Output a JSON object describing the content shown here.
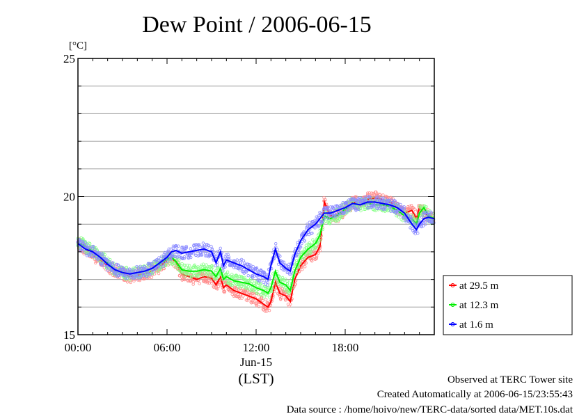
{
  "chart_data": {
    "type": "line",
    "title": "Dew Point / 2006-06-15",
    "ylabel": "[°C]",
    "xlabel": "(LST)",
    "x_date_label": "Jun-15",
    "ylim": [
      15,
      25
    ],
    "xlim": [
      0,
      24
    ],
    "y_ticks": [
      {
        "v": 15,
        "label": "15"
      },
      {
        "v": 20,
        "label": "20"
      },
      {
        "v": 25,
        "label": "25"
      }
    ],
    "y_gridlines": [
      16,
      17,
      18,
      19,
      20,
      21,
      22,
      23,
      24
    ],
    "x_ticks": [
      {
        "v": 0,
        "label": "00:00"
      },
      {
        "v": 6,
        "label": "06:00"
      },
      {
        "v": 12,
        "label": "12:00"
      },
      {
        "v": 18,
        "label": "18:00"
      }
    ],
    "x_minor_step": 1,
    "legend_position": "right",
    "series": [
      {
        "name": "at 29.5 m",
        "color": "#ff0000",
        "band_color": "#ff8a8a",
        "points": [
          [
            0,
            18.3
          ],
          [
            0.5,
            18.1
          ],
          [
            1,
            17.9
          ],
          [
            1.5,
            17.7
          ],
          [
            2,
            17.5
          ],
          [
            2.5,
            17.3
          ],
          [
            3,
            17.2
          ],
          [
            3.5,
            17.1
          ],
          [
            4,
            17.15
          ],
          [
            4.5,
            17.2
          ],
          [
            5,
            17.3
          ],
          [
            5.5,
            17.45
          ],
          [
            6,
            17.7
          ],
          [
            6.3,
            17.8
          ],
          [
            6.6,
            17.6
          ],
          [
            7,
            17.2
          ],
          [
            7.5,
            17.1
          ],
          [
            8,
            17.0
          ],
          [
            8.5,
            17.1
          ],
          [
            9,
            17.05
          ],
          [
            9.3,
            16.8
          ],
          [
            9.6,
            17.1
          ],
          [
            9.8,
            16.7
          ],
          [
            10,
            16.8
          ],
          [
            10.5,
            16.6
          ],
          [
            11,
            16.5
          ],
          [
            11.5,
            16.4
          ],
          [
            12,
            16.3
          ],
          [
            12.5,
            16.1
          ],
          [
            12.8,
            16.0
          ],
          [
            13,
            16.2
          ],
          [
            13.3,
            16.9
          ],
          [
            13.6,
            16.5
          ],
          [
            14,
            16.4
          ],
          [
            14.3,
            16.2
          ],
          [
            14.6,
            17.0
          ],
          [
            15,
            17.5
          ],
          [
            15.5,
            17.8
          ],
          [
            16,
            17.9
          ],
          [
            16.3,
            18.2
          ],
          [
            16.6,
            19.8
          ],
          [
            17,
            19.3
          ],
          [
            17.5,
            19.3
          ],
          [
            18,
            19.5
          ],
          [
            18.5,
            19.8
          ],
          [
            19,
            19.75
          ],
          [
            19.5,
            19.9
          ],
          [
            20,
            19.95
          ],
          [
            20.5,
            19.9
          ],
          [
            21,
            19.8
          ],
          [
            21.5,
            19.6
          ],
          [
            22,
            19.4
          ],
          [
            22.5,
            19.5
          ],
          [
            22.8,
            19.2
          ],
          [
            23,
            19.6
          ],
          [
            23.3,
            19.4
          ],
          [
            23.6,
            19.3
          ],
          [
            24,
            19.1
          ]
        ]
      },
      {
        "name": "at 12.3 m",
        "color": "#00ee00",
        "band_color": "#8aff8a",
        "points": [
          [
            0,
            18.35
          ],
          [
            0.5,
            18.2
          ],
          [
            1,
            18.0
          ],
          [
            1.5,
            17.8
          ],
          [
            2,
            17.6
          ],
          [
            2.5,
            17.35
          ],
          [
            3,
            17.25
          ],
          [
            3.5,
            17.2
          ],
          [
            4,
            17.25
          ],
          [
            4.5,
            17.3
          ],
          [
            5,
            17.4
          ],
          [
            5.5,
            17.55
          ],
          [
            6,
            17.75
          ],
          [
            6.3,
            17.8
          ],
          [
            6.6,
            17.65
          ],
          [
            7,
            17.35
          ],
          [
            7.5,
            17.3
          ],
          [
            8,
            17.3
          ],
          [
            8.5,
            17.35
          ],
          [
            9,
            17.3
          ],
          [
            9.3,
            17.1
          ],
          [
            9.6,
            17.4
          ],
          [
            9.8,
            17.0
          ],
          [
            10,
            17.1
          ],
          [
            10.5,
            16.95
          ],
          [
            11,
            16.9
          ],
          [
            11.5,
            16.85
          ],
          [
            12,
            16.7
          ],
          [
            12.5,
            16.6
          ],
          [
            12.8,
            16.5
          ],
          [
            13,
            16.7
          ],
          [
            13.3,
            17.3
          ],
          [
            13.6,
            16.9
          ],
          [
            14,
            16.8
          ],
          [
            14.3,
            16.6
          ],
          [
            14.6,
            17.3
          ],
          [
            15,
            17.8
          ],
          [
            15.5,
            18.1
          ],
          [
            16,
            18.3
          ],
          [
            16.3,
            18.6
          ],
          [
            16.6,
            19.3
          ],
          [
            17,
            19.2
          ],
          [
            17.5,
            19.35
          ],
          [
            18,
            19.55
          ],
          [
            18.5,
            19.75
          ],
          [
            19,
            19.7
          ],
          [
            19.5,
            19.75
          ],
          [
            20,
            19.7
          ],
          [
            20.5,
            19.7
          ],
          [
            21,
            19.65
          ],
          [
            21.5,
            19.5
          ],
          [
            22,
            19.3
          ],
          [
            22.5,
            19.2
          ],
          [
            22.8,
            19.0
          ],
          [
            23,
            19.4
          ],
          [
            23.3,
            19.6
          ],
          [
            23.6,
            19.3
          ],
          [
            24,
            19.2
          ]
        ]
      },
      {
        "name": "at 1.6 m",
        "color": "#0000ff",
        "band_color": "#8a8aff",
        "points": [
          [
            0,
            18.3
          ],
          [
            0.5,
            18.1
          ],
          [
            1,
            18.0
          ],
          [
            1.5,
            17.8
          ],
          [
            2,
            17.55
          ],
          [
            2.5,
            17.35
          ],
          [
            3,
            17.25
          ],
          [
            3.5,
            17.2
          ],
          [
            4,
            17.25
          ],
          [
            4.5,
            17.3
          ],
          [
            5,
            17.4
          ],
          [
            5.5,
            17.6
          ],
          [
            6,
            17.8
          ],
          [
            6.3,
            18.0
          ],
          [
            6.6,
            18.05
          ],
          [
            7,
            17.95
          ],
          [
            7.5,
            18.0
          ],
          [
            8,
            18.05
          ],
          [
            8.5,
            18.1
          ],
          [
            9,
            18.0
          ],
          [
            9.3,
            17.6
          ],
          [
            9.6,
            18.0
          ],
          [
            9.8,
            17.5
          ],
          [
            10,
            17.7
          ],
          [
            10.5,
            17.6
          ],
          [
            11,
            17.5
          ],
          [
            11.5,
            17.35
          ],
          [
            12,
            17.2
          ],
          [
            12.5,
            17.1
          ],
          [
            12.8,
            17.0
          ],
          [
            13,
            17.5
          ],
          [
            13.3,
            18.1
          ],
          [
            13.6,
            17.6
          ],
          [
            14,
            17.4
          ],
          [
            14.3,
            17.3
          ],
          [
            14.6,
            17.9
          ],
          [
            15,
            18.4
          ],
          [
            15.5,
            18.8
          ],
          [
            16,
            19.0
          ],
          [
            16.3,
            19.2
          ],
          [
            16.6,
            19.4
          ],
          [
            17,
            19.4
          ],
          [
            17.5,
            19.5
          ],
          [
            18,
            19.6
          ],
          [
            18.5,
            19.75
          ],
          [
            19,
            19.7
          ],
          [
            19.5,
            19.8
          ],
          [
            20,
            19.8
          ],
          [
            20.5,
            19.75
          ],
          [
            21,
            19.7
          ],
          [
            21.5,
            19.6
          ],
          [
            22,
            19.4
          ],
          [
            22.5,
            19.0
          ],
          [
            22.8,
            18.8
          ],
          [
            23,
            19.0
          ],
          [
            23.3,
            19.2
          ],
          [
            23.6,
            19.25
          ],
          [
            24,
            19.2
          ]
        ]
      }
    ]
  },
  "footer": {
    "line1": "Observed at TERC Tower site",
    "line2": "Created Automatically at 2006-06-15/23:55:43",
    "line3": "Data source : /home/hoivo/new/TERC-data/sorted data/MET.10s.dat"
  }
}
